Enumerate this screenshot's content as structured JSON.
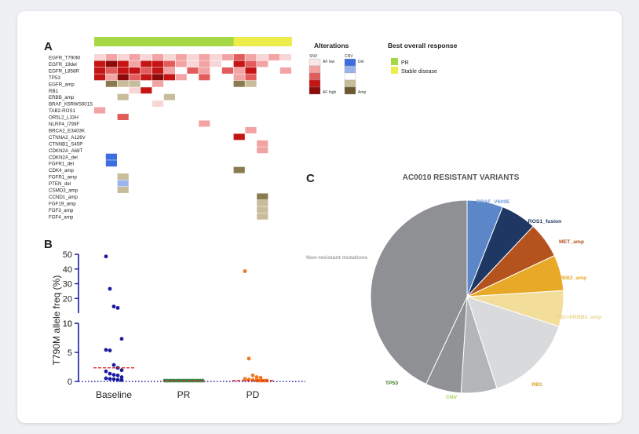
{
  "panelA": {
    "panel_letter": "A",
    "response_colors": {
      "PR": "#a6d845",
      "SD": "#ecec4a"
    },
    "response_bar": [
      "PR",
      "PR",
      "PR",
      "PR",
      "PR",
      "PR",
      "PR",
      "PR",
      "PR",
      "PR",
      "PR",
      "PR",
      "SD",
      "SD",
      "SD",
      "SD",
      "SD"
    ],
    "genes": [
      "EGFR_T790M",
      "EGFR_19del",
      "EGFR_L858R",
      "TP53",
      "EGFR_amp",
      "RB1",
      "ERBB_amp",
      "BRAF_K5RWS601S",
      "TAB2-ROS1",
      "OR5L2_L33H",
      "NLRP4_I799F",
      "BRCA2_E3403K",
      "CTNNA2_A126V",
      "CTNNB1_S45P",
      "CDKN2A_A68T",
      "CDKN2A_del",
      "FGFR1_del",
      "CDK4_amp",
      "FGFR1_amp",
      "PTEN_del",
      "CSMD3_amp",
      "CCND1_amp",
      "FGF19_amp",
      "FGF3_amp",
      "FGF4_amp"
    ],
    "palette": {
      "s1": "#f9d6d6",
      "s2": "#f2a3a3",
      "s3": "#e35c5c",
      "s4": "#c41414",
      "s5": "#8b0a0a",
      "d": "#3d6ee0",
      "dl": "#9bb4ec",
      "a": "#8a7a50",
      "al": "#c8bd9a"
    },
    "cells": [
      {
        "gene": 0,
        "sample": 0,
        "c": "s1"
      },
      {
        "gene": 0,
        "sample": 1,
        "c": "s2"
      },
      {
        "gene": 0,
        "sample": 2,
        "c": "s1"
      },
      {
        "gene": 0,
        "sample": 3,
        "c": "s2"
      },
      {
        "gene": 0,
        "sample": 4,
        "c": "s1"
      },
      {
        "gene": 0,
        "sample": 5,
        "c": "s2"
      },
      {
        "gene": 0,
        "sample": 6,
        "c": "s1"
      },
      {
        "gene": 0,
        "sample": 7,
        "c": "s2"
      },
      {
        "gene": 0,
        "sample": 8,
        "c": "s1"
      },
      {
        "gene": 0,
        "sample": 9,
        "c": "s2"
      },
      {
        "gene": 0,
        "sample": 10,
        "c": "s1"
      },
      {
        "gene": 0,
        "sample": 11,
        "c": "s2"
      },
      {
        "gene": 0,
        "sample": 12,
        "c": "s3"
      },
      {
        "gene": 0,
        "sample": 13,
        "c": "s2"
      },
      {
        "gene": 0,
        "sample": 14,
        "c": "s1"
      },
      {
        "gene": 0,
        "sample": 15,
        "c": "s2"
      },
      {
        "gene": 0,
        "sample": 16,
        "c": "s1"
      },
      {
        "gene": 1,
        "sample": 0,
        "c": "s4"
      },
      {
        "gene": 1,
        "sample": 1,
        "c": "s5"
      },
      {
        "gene": 1,
        "sample": 2,
        "c": "s4"
      },
      {
        "gene": 1,
        "sample": 3,
        "c": "s2"
      },
      {
        "gene": 1,
        "sample": 4,
        "c": "s4"
      },
      {
        "gene": 1,
        "sample": 5,
        "c": "s4"
      },
      {
        "gene": 1,
        "sample": 6,
        "c": "s3"
      },
      {
        "gene": 1,
        "sample": 7,
        "c": "s2"
      },
      {
        "gene": 1,
        "sample": 8,
        "c": "s1"
      },
      {
        "gene": 1,
        "sample": 9,
        "c": "s2"
      },
      {
        "gene": 1,
        "sample": 10,
        "c": "s1"
      },
      {
        "gene": 1,
        "sample": 12,
        "c": "s4"
      },
      {
        "gene": 1,
        "sample": 13,
        "c": "s3"
      },
      {
        "gene": 1,
        "sample": 14,
        "c": "s2"
      },
      {
        "gene": 2,
        "sample": 0,
        "c": "s4"
      },
      {
        "gene": 2,
        "sample": 1,
        "c": "s3"
      },
      {
        "gene": 2,
        "sample": 2,
        "c": "s4"
      },
      {
        "gene": 2,
        "sample": 3,
        "c": "s4"
      },
      {
        "gene": 2,
        "sample": 4,
        "c": "s3"
      },
      {
        "gene": 2,
        "sample": 5,
        "c": "s4"
      },
      {
        "gene": 2,
        "sample": 6,
        "c": "s2"
      },
      {
        "gene": 2,
        "sample": 8,
        "c": "s3"
      },
      {
        "gene": 2,
        "sample": 9,
        "c": "s2"
      },
      {
        "gene": 2,
        "sample": 11,
        "c": "s3"
      },
      {
        "gene": 2,
        "sample": 12,
        "c": "s2"
      },
      {
        "gene": 2,
        "sample": 13,
        "c": "s4"
      },
      {
        "gene": 2,
        "sample": 16,
        "c": "s2"
      },
      {
        "gene": 3,
        "sample": 0,
        "c": "s4"
      },
      {
        "gene": 3,
        "sample": 1,
        "c": "s2"
      },
      {
        "gene": 3,
        "sample": 2,
        "c": "s5"
      },
      {
        "gene": 3,
        "sample": 3,
        "c": "s3"
      },
      {
        "gene": 3,
        "sample": 4,
        "c": "s4"
      },
      {
        "gene": 3,
        "sample": 5,
        "c": "s5"
      },
      {
        "gene": 3,
        "sample": 6,
        "c": "s4"
      },
      {
        "gene": 3,
        "sample": 7,
        "c": "s2"
      },
      {
        "gene": 3,
        "sample": 9,
        "c": "s3"
      },
      {
        "gene": 3,
        "sample": 12,
        "c": "s2"
      },
      {
        "gene": 3,
        "sample": 13,
        "c": "s3"
      },
      {
        "gene": 4,
        "sample": 1,
        "c": "a"
      },
      {
        "gene": 4,
        "sample": 2,
        "c": "al"
      },
      {
        "gene": 4,
        "sample": 3,
        "c": "al"
      },
      {
        "gene": 4,
        "sample": 5,
        "c": "s2"
      },
      {
        "gene": 4,
        "sample": 12,
        "c": "a"
      },
      {
        "gene": 4,
        "sample": 13,
        "c": "al"
      },
      {
        "gene": 5,
        "sample": 3,
        "c": "s1"
      },
      {
        "gene": 5,
        "sample": 4,
        "c": "s4"
      },
      {
        "gene": 6,
        "sample": 2,
        "c": "al"
      },
      {
        "gene": 6,
        "sample": 6,
        "c": "al"
      },
      {
        "gene": 7,
        "sample": 5,
        "c": "s1"
      },
      {
        "gene": 8,
        "sample": 0,
        "c": "s2"
      },
      {
        "gene": 9,
        "sample": 2,
        "c": "s3"
      },
      {
        "gene": 10,
        "sample": 9,
        "c": "s2"
      },
      {
        "gene": 11,
        "sample": 13,
        "c": "s2"
      },
      {
        "gene": 12,
        "sample": 12,
        "c": "s4"
      },
      {
        "gene": 13,
        "sample": 14,
        "c": "s2"
      },
      {
        "gene": 14,
        "sample": 14,
        "c": "s2"
      },
      {
        "gene": 15,
        "sample": 1,
        "c": "d"
      },
      {
        "gene": 16,
        "sample": 1,
        "c": "d"
      },
      {
        "gene": 17,
        "sample": 12,
        "c": "a"
      },
      {
        "gene": 18,
        "sample": 2,
        "c": "al"
      },
      {
        "gene": 19,
        "sample": 2,
        "c": "dl"
      },
      {
        "gene": 20,
        "sample": 2,
        "c": "al"
      },
      {
        "gene": 21,
        "sample": 14,
        "c": "a"
      },
      {
        "gene": 22,
        "sample": 14,
        "c": "al"
      },
      {
        "gene": 23,
        "sample": 14,
        "c": "al"
      },
      {
        "gene": 24,
        "sample": 14,
        "c": "al"
      }
    ],
    "legend": {
      "alterations_title": "Alterations",
      "snv_label": "SNV",
      "cnv_label": "CNV",
      "af_low": "AF low",
      "af_high": "AF high",
      "del_label": "Del",
      "amp_label": "Amp",
      "snv_swatches": [
        "#f9e6e6",
        "#f2a3a3",
        "#e35c5c",
        "#c41414",
        "#8b0a0a"
      ],
      "cnv_swatches": [
        "#3d6ee0",
        "#9bb4ec",
        "#ffffff",
        "#c8bd9a",
        "#6b5a30"
      ],
      "response_title": "Best overall response",
      "response_items": [
        {
          "label": "PR",
          "color": "#a6d845"
        },
        {
          "label": "Stable disease",
          "color": "#ecec4a"
        }
      ]
    }
  },
  "panelB": {
    "panel_letter": "B",
    "chart_data": {
      "type": "scatter",
      "ylabel": "T790M allele freq (%)",
      "categories": [
        "Baseline",
        "PR",
        "PD"
      ],
      "y_upper_ticks": [
        "10",
        "20",
        "30",
        "40",
        "50"
      ],
      "y_lower_ticks": [
        "0",
        "5",
        "10"
      ],
      "series": [
        {
          "category": "Baseline",
          "color": "#1a1a9e",
          "values": [
            48,
            26,
            14,
            13,
            7.2,
            5.3,
            5.2,
            2.7,
            2.2,
            1.8,
            1.6,
            1.2,
            1.0,
            0.9,
            0.6,
            0.4,
            0.3,
            0.25,
            0.15,
            0.1
          ]
        },
        {
          "category": "PR",
          "color": "#2f8f4f",
          "values": [
            0,
            0,
            0,
            0,
            0,
            0,
            0,
            0,
            0,
            0,
            0,
            0,
            0,
            0,
            0,
            0,
            0
          ]
        },
        {
          "category": "PD",
          "color": "#f07820",
          "values": [
            38,
            3.8,
            0.9,
            0.6,
            0.5,
            0.3,
            0.2,
            0.1,
            0.1,
            0.1,
            0,
            0,
            0,
            0,
            0
          ]
        }
      ],
      "medians": [
        2.2,
        0,
        0
      ],
      "median_color": "#e02020"
    }
  },
  "panelC": {
    "panel_letter": "C",
    "chart_data": {
      "type": "pie",
      "title": "AC0010 RESISTANT VARIANTS",
      "slices": [
        {
          "label": "BRAF_V600E",
          "value": 6,
          "color": "#5b87c8",
          "label_color": "#6f9ad4"
        },
        {
          "label": "ROS1_fusion",
          "value": 6,
          "color": "#1f3763",
          "label_color": "#1f3763"
        },
        {
          "label": "MET_amp",
          "value": 6,
          "color": "#b5531e",
          "label_color": "#b5531e"
        },
        {
          "label": "ERBB2_amp",
          "value": 6,
          "color": "#e8a928",
          "label_color": "#e8a928"
        },
        {
          "label": "RB1+ERBB2_amp",
          "value": 6,
          "color": "#f2dd9a",
          "label_color": "#ead58a"
        },
        {
          "label": "RB1",
          "value": 15,
          "color": "#d8dadc",
          "label_color": "#d4a020"
        },
        {
          "label": "CNV",
          "value": 6,
          "color": "#b3b5b8",
          "label_color": "#a5d05a"
        },
        {
          "label": "TP53",
          "value": 6,
          "color": "#909295",
          "label_color": "#3a7a2a"
        },
        {
          "label": "Non-resistant mutations",
          "value": 43,
          "color": "#8e9093",
          "label_color": "#a0a0a0"
        }
      ]
    }
  }
}
